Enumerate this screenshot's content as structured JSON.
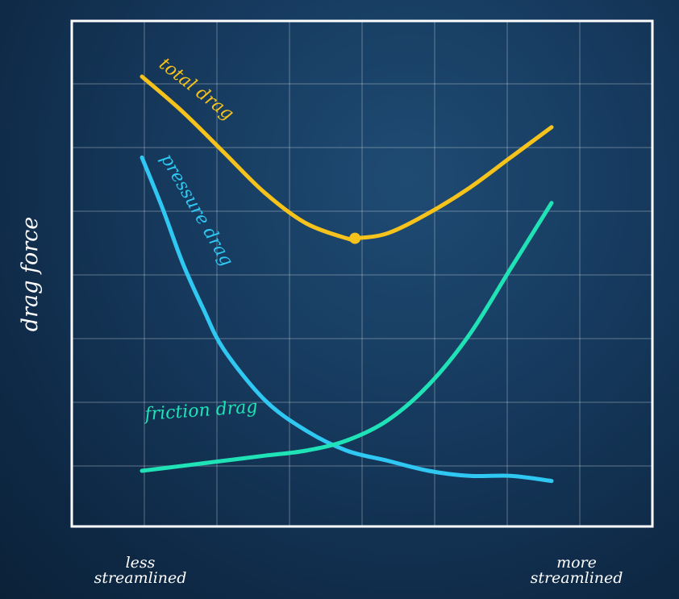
{
  "chart_data": {
    "type": "line",
    "ylabel": "drag force",
    "x_tick_labels": {
      "left": [
        "less",
        "streamlined"
      ],
      "right": [
        "more",
        "streamlined"
      ]
    },
    "grid": true,
    "x_domain": [
      0,
      1
    ],
    "y_domain": [
      0,
      1
    ],
    "series": [
      {
        "name": "total drag",
        "color": "#f6c21c",
        "x": [
          0.0,
          0.1,
          0.2,
          0.3,
          0.4,
          0.5,
          0.52,
          0.6,
          0.7,
          0.8,
          0.9,
          1.0
        ],
        "y": [
          0.89,
          0.82,
          0.74,
          0.66,
          0.6,
          0.57,
          0.57,
          0.58,
          0.62,
          0.67,
          0.73,
          0.79
        ]
      },
      {
        "name": "pressure drag",
        "color": "#2ec8f2",
        "x": [
          0.0,
          0.05,
          0.1,
          0.15,
          0.2,
          0.3,
          0.4,
          0.5,
          0.6,
          0.7,
          0.8,
          0.9,
          1.0
        ],
        "y": [
          0.73,
          0.63,
          0.52,
          0.43,
          0.35,
          0.25,
          0.19,
          0.15,
          0.13,
          0.11,
          0.1,
          0.1,
          0.09
        ]
      },
      {
        "name": "friction drag",
        "color": "#1fe3b6",
        "x": [
          0.0,
          0.1,
          0.2,
          0.3,
          0.4,
          0.5,
          0.6,
          0.7,
          0.8,
          0.9,
          1.0
        ],
        "y": [
          0.11,
          0.12,
          0.13,
          0.14,
          0.15,
          0.17,
          0.21,
          0.28,
          0.38,
          0.51,
          0.64
        ]
      }
    ],
    "marker": {
      "series": "total drag",
      "x": 0.52,
      "y": 0.57,
      "color": "#f6c21c"
    }
  }
}
